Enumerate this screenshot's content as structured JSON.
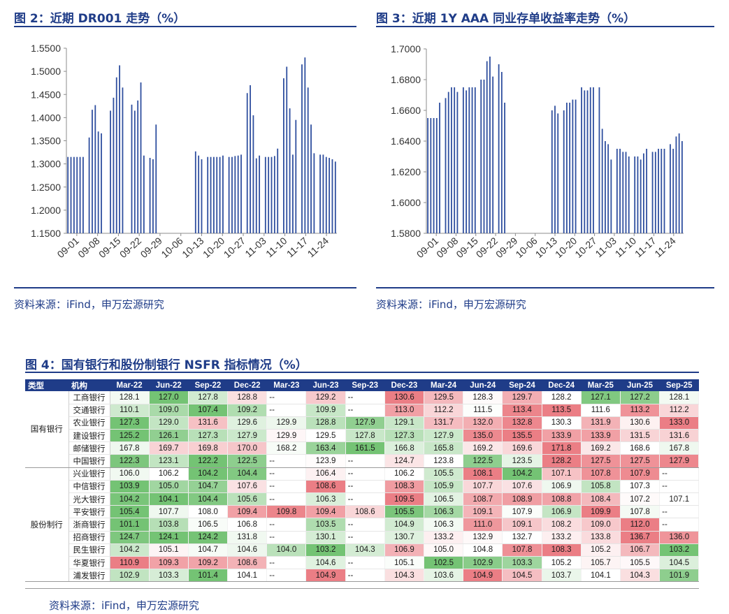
{
  "fig2": {
    "title": "图 2：近期 DR001 走势（%）",
    "source": "资料来源：iFind，申万宏源研究"
  },
  "fig3": {
    "title": "图 3：近期 1Y AAA 同业存单收益率走势（%）",
    "source": "资料来源：iFind，申万宏源研究"
  },
  "fig4": {
    "title": "图 4：国有银行和股份制银行 NSFR 指标情况（%）",
    "source": "资料来源：iFind，申万宏源研究"
  },
  "colors": {
    "brand_blue": "#1f3c88",
    "bar_blue": "#2f4f9f",
    "heat_high": "#e8676f",
    "heat_mid": "#ffffff",
    "heat_low": "#5cb85c",
    "na_cell": "#ffffff"
  },
  "chart_data": [
    {
      "type": "bar",
      "title": "近期 DR001 走势（%）",
      "xlabel": "",
      "ylabel": "",
      "ylim": [
        1.15,
        1.55
      ],
      "yticks": [
        "1.1500",
        "1.2000",
        "1.2500",
        "1.3000",
        "1.3500",
        "1.4000",
        "1.4500",
        "1.5000",
        "1.5500"
      ],
      "grid": false,
      "x_tick_labels": [
        "09-01",
        "09-08",
        "09-15",
        "09-22",
        "09-29",
        "10-06",
        "10-13",
        "10-20",
        "10-27",
        "11-03",
        "11-10",
        "11-17",
        "11-24"
      ],
      "values": [
        1.315,
        1.315,
        1.315,
        1.315,
        1.315,
        1.315,
        null,
        1.357,
        1.417,
        1.427,
        1.37,
        1.366,
        null,
        null,
        1.415,
        1.443,
        1.487,
        1.513,
        1.465,
        null,
        null,
        1.428,
        1.415,
        1.437,
        1.476,
        1.318,
        null,
        1.313,
        1.31,
        1.385,
        null,
        null,
        null,
        null,
        null,
        null,
        null,
        null,
        null,
        null,
        null,
        null,
        1.327,
        1.318,
        1.31,
        null,
        1.315,
        1.315,
        1.315,
        1.315,
        1.315,
        1.318,
        null,
        1.315,
        1.315,
        1.317,
        1.318,
        1.32,
        null,
        1.453,
        1.47,
        1.405,
        1.312,
        1.318,
        null,
        1.315,
        1.315,
        1.315,
        1.317,
        1.333,
        null,
        1.485,
        1.51,
        1.42,
        1.32,
        1.395,
        null,
        1.515,
        1.53,
        1.465,
        1.385,
        1.323,
        null,
        1.32,
        1.32,
        1.315,
        1.313,
        1.31,
        1.305
      ]
    },
    {
      "type": "bar",
      "title": "近期 1Y AAA 同业存单收益率走势（%）",
      "xlabel": "",
      "ylabel": "",
      "ylim": [
        1.58,
        1.7
      ],
      "yticks": [
        "1.5800",
        "1.6000",
        "1.6200",
        "1.6400",
        "1.6600",
        "1.6800",
        "1.7000"
      ],
      "grid": false,
      "x_tick_labels": [
        "09-01",
        "09-08",
        "09-15",
        "09-22",
        "09-29",
        "10-06",
        "10-13",
        "10-20",
        "10-27",
        "11-03",
        "11-10",
        "11-17",
        "11-24"
      ],
      "values": [
        1.655,
        1.655,
        1.655,
        1.655,
        1.665,
        null,
        1.668,
        1.672,
        1.675,
        1.675,
        1.672,
        null,
        1.675,
        1.673,
        1.675,
        1.675,
        1.675,
        null,
        1.68,
        1.68,
        1.692,
        1.695,
        1.682,
        null,
        1.69,
        1.685,
        1.665,
        null,
        null,
        null,
        null,
        null,
        null,
        null,
        null,
        null,
        null,
        null,
        null,
        null,
        null,
        null,
        1.66,
        1.663,
        1.658,
        null,
        1.66,
        1.665,
        1.665,
        1.667,
        1.667,
        null,
        1.675,
        1.673,
        1.673,
        1.675,
        1.675,
        null,
        1.675,
        1.648,
        1.64,
        1.638,
        1.628,
        null,
        1.635,
        1.635,
        1.633,
        1.633,
        1.63,
        null,
        1.63,
        1.63,
        1.628,
        1.632,
        1.635,
        null,
        1.633,
        1.633,
        1.635,
        1.635,
        1.635,
        null,
        1.638,
        1.635,
        1.643,
        1.645,
        1.64
      ]
    },
    {
      "type": "table",
      "title": "国有银行和股份制银行 NSFR 指标情况（%）",
      "header": {
        "type": "类型",
        "institution": "机构"
      },
      "periods": [
        "Mar-22",
        "Jun-22",
        "Sep-22",
        "Dec-22",
        "Mar-23",
        "Jun-23",
        "Sep-23",
        "Dec-23",
        "Mar-24",
        "Jun-24",
        "Sep-24",
        "Dec-24",
        "Mar-25",
        "Jun-25",
        "Sep-25"
      ],
      "groups": [
        {
          "name": "国有银行",
          "rows": [
            {
              "name": "工商银行",
              "values": [
                "128.1",
                "127.0",
                "127.8",
                "128.8",
                "--",
                "129.2",
                "--",
                "130.6",
                "129.5",
                "128.3",
                "129.7",
                "128.2",
                "127.1",
                "127.2",
                "128.1"
              ]
            },
            {
              "name": "交通银行",
              "values": [
                "110.1",
                "109.0",
                "107.4",
                "109.2",
                "--",
                "109.9",
                "--",
                "113.0",
                "112.2",
                "111.5",
                "113.4",
                "113.5",
                "111.6",
                "113.2",
                "112.2"
              ]
            },
            {
              "name": "农业银行",
              "values": [
                "127.3",
                "129.0",
                "131.6",
                "129.6",
                "129.9",
                "128.8",
                "127.9",
                "129.1",
                "131.7",
                "132.0",
                "132.8",
                "130.3",
                "131.9",
                "130.6",
                "133.0"
              ]
            },
            {
              "name": "建设银行",
              "values": [
                "125.2",
                "126.1",
                "127.3",
                "127.9",
                "129.9",
                "129.5",
                "127.8",
                "127.3",
                "127.9",
                "135.0",
                "135.5",
                "133.9",
                "133.9",
                "131.5",
                "131.6"
              ]
            },
            {
              "name": "邮储银行",
              "values": [
                "167.8",
                "169.7",
                "169.8",
                "170.0",
                "168.2",
                "163.4",
                "161.5",
                "166.8",
                "165.8",
                "169.2",
                "169.6",
                "171.8",
                "169.2",
                "168.6",
                "167.8"
              ]
            },
            {
              "name": "中国银行",
              "values": [
                "122.3",
                "123.1",
                "122.2",
                "122.5",
                "--",
                "123.9",
                "--",
                "124.7",
                "123.8",
                "122.5",
                "123.5",
                "128.2",
                "127.5",
                "127.5",
                "127.9"
              ]
            }
          ]
        },
        {
          "name": "股份制行",
          "rows": [
            {
              "name": "兴业银行",
              "values": [
                "106.0",
                "106.2",
                "104.2",
                "104.4",
                "--",
                "106.4",
                "--",
                "106.2",
                "105.5",
                "108.1",
                "104.2",
                "107.1",
                "107.8",
                "107.9",
                "--"
              ]
            },
            {
              "name": "中信银行",
              "values": [
                "103.9",
                "105.0",
                "104.7",
                "107.6",
                "--",
                "108.6",
                "--",
                "108.3",
                "105.9",
                "107.7",
                "107.6",
                "106.9",
                "105.8",
                "107.3",
                "--"
              ]
            },
            {
              "name": "光大银行",
              "values": [
                "104.2",
                "104.1",
                "104.4",
                "105.6",
                "--",
                "106.3",
                "--",
                "109.5",
                "106.5",
                "108.7",
                "108.9",
                "108.8",
                "108.4",
                "107.2",
                "107.1"
              ]
            },
            {
              "name": "平安银行",
              "values": [
                "105.4",
                "107.7",
                "108.0",
                "109.4",
                "109.8",
                "109.4",
                "108.6",
                "105.5",
                "106.3",
                "109.1",
                "107.9",
                "106.9",
                "109.9",
                "107.8",
                "--"
              ]
            },
            {
              "name": "浙商银行",
              "values": [
                "101.1",
                "103.8",
                "106.5",
                "106.8",
                "--",
                "103.5",
                "--",
                "104.9",
                "106.3",
                "111.0",
                "109.1",
                "108.2",
                "109.0",
                "112.0",
                "--"
              ]
            },
            {
              "name": "招商银行",
              "values": [
                "124.7",
                "124.1",
                "124.2",
                "131.8",
                "--",
                "130.1",
                "--",
                "130.7",
                "133.2",
                "132.9",
                "132.7",
                "133.2",
                "133.8",
                "136.7",
                "136.0"
              ]
            },
            {
              "name": "民生银行",
              "values": [
                "104.2",
                "105.1",
                "104.7",
                "104.6",
                "104.0",
                "103.2",
                "104.3",
                "106.9",
                "105.0",
                "104.8",
                "107.8",
                "108.3",
                "105.2",
                "106.7",
                "103.2"
              ]
            },
            {
              "name": "华夏银行",
              "values": [
                "110.9",
                "109.3",
                "109.2",
                "108.6",
                "--",
                "104.6",
                "--",
                "105.1",
                "102.5",
                "102.9",
                "103.3",
                "105.2",
                "105.7",
                "105.5",
                "104.5"
              ]
            },
            {
              "name": "浦发银行",
              "values": [
                "102.9",
                "103.3",
                "101.4",
                "104.1",
                "--",
                "104.9",
                "--",
                "104.3",
                "103.6",
                "104.9",
                "104.5",
                "103.7",
                "104.1",
                "104.3",
                "101.9"
              ]
            }
          ]
        }
      ]
    }
  ]
}
